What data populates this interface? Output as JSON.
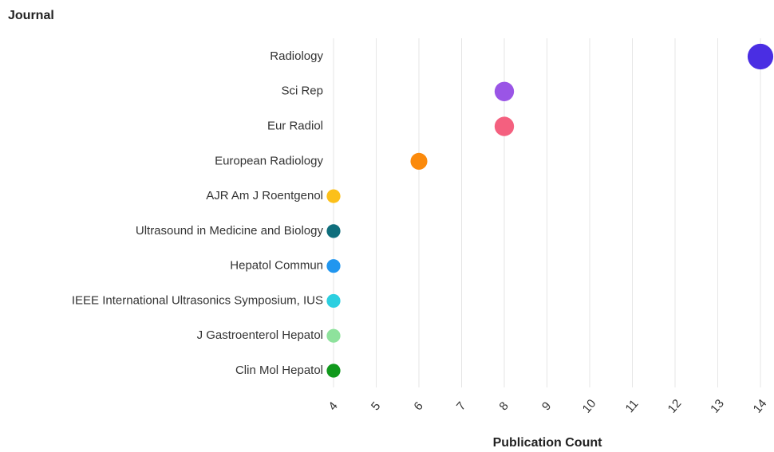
{
  "chart_data": {
    "type": "dot",
    "y_label": "Journal",
    "x_label": "Publication Count",
    "categories": [
      "Radiology",
      "Sci Rep",
      "Eur Radiol",
      "European Radiology",
      "AJR Am J Roentgenol",
      "Ultrasound in Medicine and Biology",
      "Hepatol Commun",
      "IEEE International Ultrasonics Symposium, IUS",
      "J Gastroenterol Hepatol",
      "Clin Mol Hepatol"
    ],
    "values": [
      14,
      8,
      8,
      6,
      4,
      4,
      4,
      4,
      4,
      4
    ],
    "colors": [
      "#4a2ee3",
      "#9a55e6",
      "#f4607f",
      "#fb8a0c",
      "#fcc01a",
      "#0f6e7c",
      "#2196ef",
      "#2ccfe0",
      "#8ee29c",
      "#10991c"
    ],
    "xlim": [
      4,
      14
    ],
    "xticks": [
      4,
      5,
      6,
      7,
      8,
      9,
      10,
      11,
      12,
      13,
      14
    ],
    "grid": true
  }
}
